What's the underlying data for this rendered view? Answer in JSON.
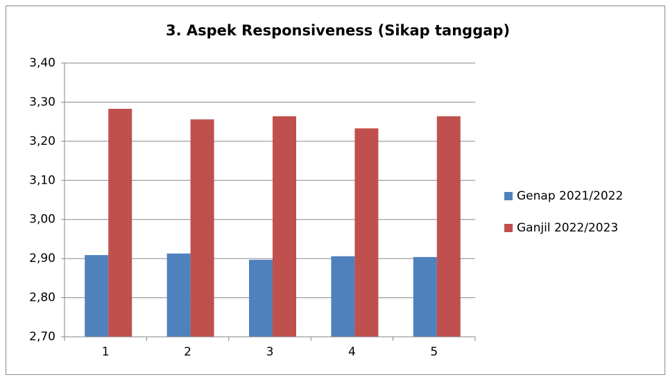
{
  "chart_data": {
    "type": "bar",
    "title": "3. Aspek Responsiveness (Sikap tanggap)",
    "categories": [
      "1",
      "2",
      "3",
      "4",
      "5"
    ],
    "series": [
      {
        "name": "Genap 2021/2022",
        "color": "#4f81bd",
        "values": [
          2.909,
          2.913,
          2.897,
          2.906,
          2.904
        ]
      },
      {
        "name": "Ganjil 2022/2023",
        "color": "#c0504d",
        "values": [
          3.283,
          3.256,
          3.264,
          3.233,
          3.264
        ]
      }
    ],
    "ylim": [
      2.7,
      3.4
    ],
    "yticks": [
      {
        "value": 2.7,
        "label": "2,70"
      },
      {
        "value": 2.8,
        "label": "2,80"
      },
      {
        "value": 2.9,
        "label": "2,90"
      },
      {
        "value": 3.0,
        "label": "3,00"
      },
      {
        "value": 3.1,
        "label": "3,10"
      },
      {
        "value": 3.2,
        "label": "3,20"
      },
      {
        "value": 3.3,
        "label": "3,30"
      },
      {
        "value": 3.4,
        "label": "3,40"
      }
    ],
    "grid": true,
    "legend": "right"
  }
}
